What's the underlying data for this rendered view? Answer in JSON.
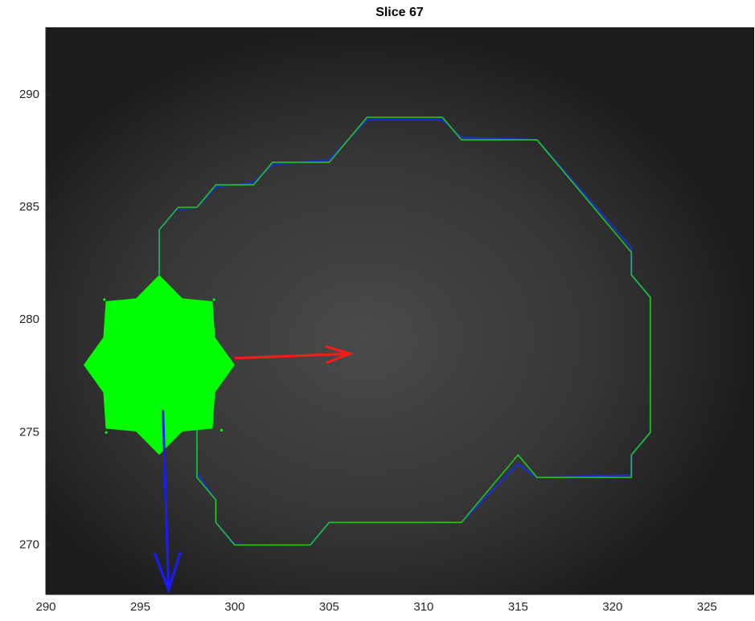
{
  "chart_data": {
    "type": "image-overlay",
    "title": "Slice 67",
    "xlim": [
      290,
      327.5
    ],
    "ylim": [
      267.8,
      293
    ],
    "xticks": [
      290,
      295,
      300,
      305,
      310,
      315,
      320,
      325
    ],
    "yticks": [
      270,
      275,
      280,
      285,
      290
    ],
    "contours": [
      {
        "color": "#1a2fd0",
        "x": [
          296,
          296,
          296.9,
          298,
          299,
          301,
          302,
          305,
          307,
          311,
          312,
          316,
          321,
          321,
          322,
          322,
          321,
          321,
          316,
          315,
          312,
          305,
          304,
          300,
          299,
          299,
          298,
          298
        ],
        "y": [
          282,
          284,
          284.9,
          285,
          285.9,
          286.1,
          286.9,
          287.1,
          288.9,
          288.9,
          288.1,
          288,
          283.2,
          282,
          281,
          275,
          274,
          273.1,
          273,
          273.6,
          271,
          271,
          270,
          270,
          271,
          272,
          273.2,
          276
        ]
      },
      {
        "color": "#22c51e",
        "x": [
          296,
          296,
          297,
          298,
          299,
          301,
          302,
          305,
          307,
          311,
          312,
          316,
          321,
          321,
          322,
          322,
          321,
          321,
          316,
          315,
          312,
          305,
          304,
          300,
          299,
          299,
          298,
          298
        ],
        "y": [
          282,
          284,
          285,
          285,
          286,
          286,
          287,
          287,
          289,
          289,
          288,
          288,
          283,
          282,
          281,
          275,
          274,
          273,
          273,
          274,
          271,
          271,
          270,
          270,
          271,
          272,
          273,
          276
        ]
      }
    ],
    "marker": {
      "x": 296,
      "y": 278,
      "radius": 4,
      "color": "#00ff00"
    },
    "points": {
      "x": [
        293.1,
        298.9,
        293.2,
        299.3
      ],
      "y": [
        280.9,
        280.9,
        275,
        275.1
      ],
      "color": "#00ff00"
    },
    "arrows": [
      {
        "x": 300,
        "y": 278.3,
        "u": 6.1,
        "v": 0.2,
        "color": "#ff1a1a"
      },
      {
        "x": 296.2,
        "y": 276,
        "u": 0.3,
        "v": -8,
        "color": "#1a1aff"
      }
    ]
  }
}
